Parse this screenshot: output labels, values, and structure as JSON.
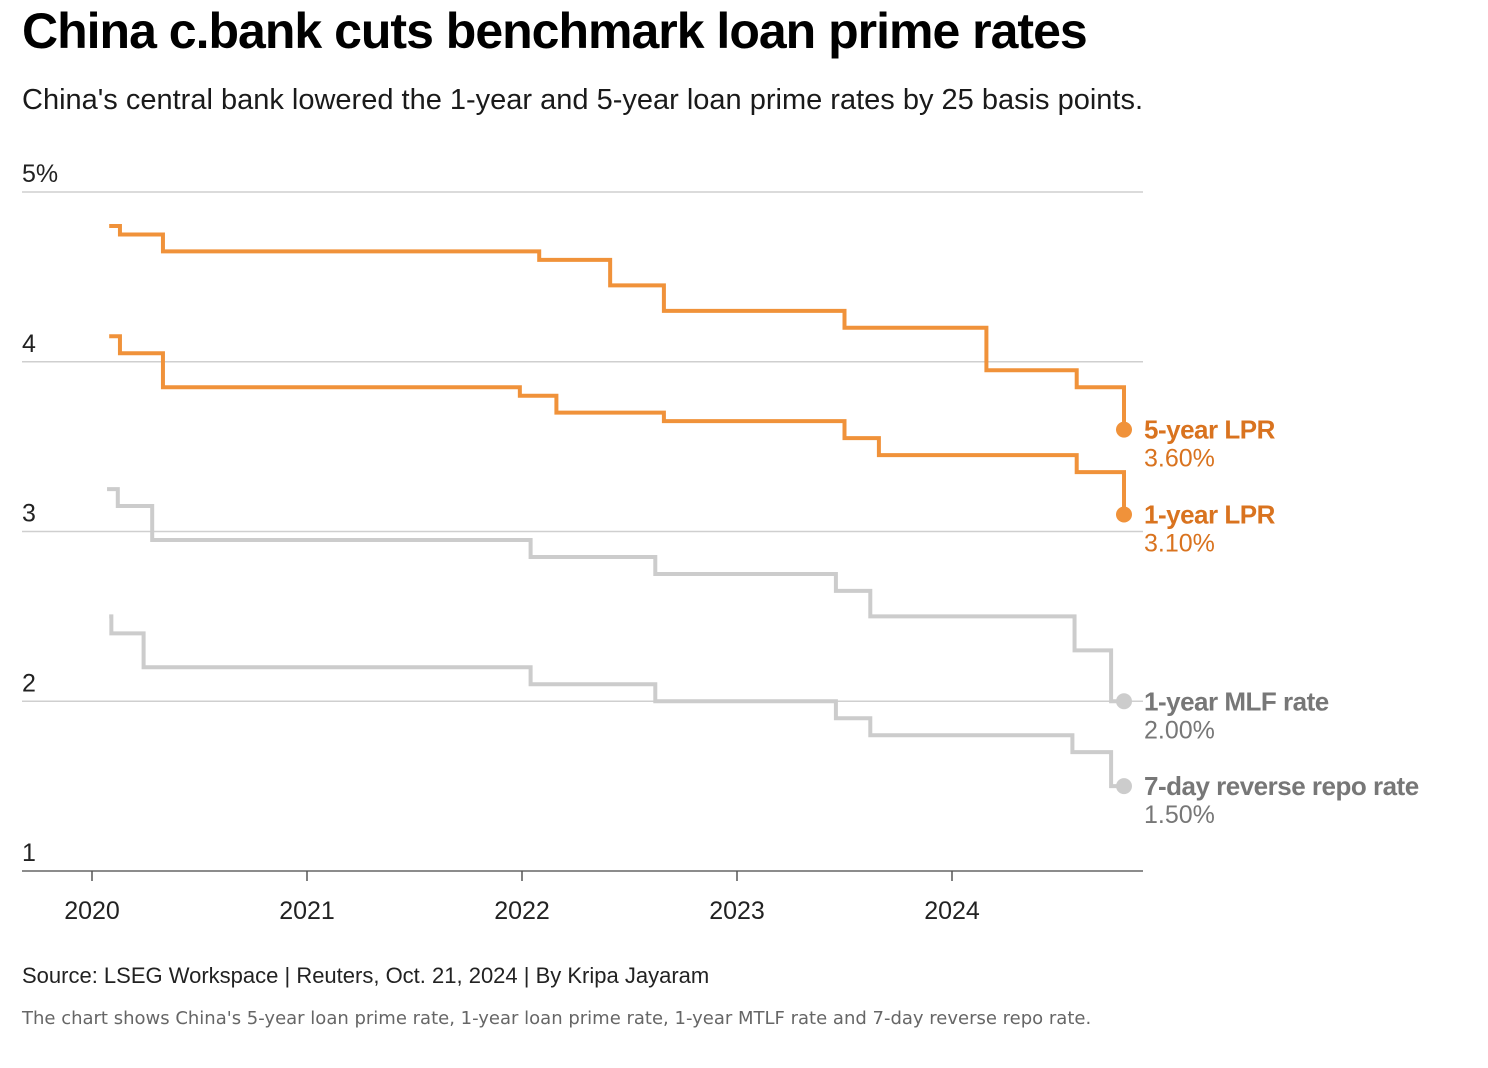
{
  "title": "China c.bank cuts benchmark loan prime rates",
  "subtitle": "China's central bank lowered the 1-year and 5-year loan prime rates by 25 basis points.",
  "source": "Source: LSEG Workspace | Reuters, Oct. 21, 2024 | By Kripa Jayaram",
  "note": "The chart shows China's 5-year loan prime rate, 1-year loan prime rate, 1-year MTLF rate and 7-day reverse repo rate.",
  "chart_data": {
    "type": "line",
    "step": true,
    "ylim": [
      1,
      5
    ],
    "y_ticks": [
      {
        "value": 5,
        "label": "5%"
      },
      {
        "value": 4,
        "label": "4"
      },
      {
        "value": 3,
        "label": "3"
      },
      {
        "value": 2,
        "label": "2"
      },
      {
        "value": 1,
        "label": "1"
      }
    ],
    "x_ticks": [
      2020,
      2021,
      2022,
      2023,
      2024
    ],
    "xlim": [
      2019.67,
      2024.93
    ],
    "grid": true,
    "series": [
      {
        "name": "5-year LPR",
        "end_label": "3.60%",
        "color": "#f0923a",
        "label_color": "#d9731f",
        "points": [
          [
            2020.08,
            4.8
          ],
          [
            2020.13,
            4.75
          ],
          [
            2020.33,
            4.65
          ],
          [
            2022.08,
            4.6
          ],
          [
            2022.41,
            4.45
          ],
          [
            2022.66,
            4.3
          ],
          [
            2023.5,
            4.2
          ],
          [
            2024.16,
            3.95
          ],
          [
            2024.58,
            3.85
          ],
          [
            2024.8,
            3.6
          ]
        ]
      },
      {
        "name": "1-year LPR",
        "end_label": "3.10%",
        "color": "#f0923a",
        "label_color": "#d9731f",
        "points": [
          [
            2020.08,
            4.15
          ],
          [
            2020.13,
            4.05
          ],
          [
            2020.33,
            3.85
          ],
          [
            2021.99,
            3.8
          ],
          [
            2022.16,
            3.7
          ],
          [
            2022.66,
            3.65
          ],
          [
            2023.5,
            3.55
          ],
          [
            2023.66,
            3.45
          ],
          [
            2024.58,
            3.35
          ],
          [
            2024.8,
            3.1
          ]
        ]
      },
      {
        "name": "1-year MLF rate",
        "end_label": "2.00%",
        "color": "#cccccc",
        "label_color": "#777777",
        "points": [
          [
            2020.07,
            3.25
          ],
          [
            2020.12,
            3.15
          ],
          [
            2020.28,
            2.95
          ],
          [
            2022.04,
            2.85
          ],
          [
            2022.62,
            2.75
          ],
          [
            2023.46,
            2.65
          ],
          [
            2023.62,
            2.5
          ],
          [
            2024.57,
            2.3
          ],
          [
            2024.74,
            2.0
          ],
          [
            2024.8,
            2.0
          ]
        ]
      },
      {
        "name": "7-day reverse repo rate",
        "end_label": "1.50%",
        "color": "#cccccc",
        "label_color": "#777777",
        "points": [
          [
            2020.08,
            2.5
          ],
          [
            2020.09,
            2.4
          ],
          [
            2020.24,
            2.2
          ],
          [
            2022.04,
            2.1
          ],
          [
            2022.62,
            2.0
          ],
          [
            2023.46,
            1.9
          ],
          [
            2023.62,
            1.8
          ],
          [
            2024.56,
            1.7
          ],
          [
            2024.74,
            1.5
          ],
          [
            2024.8,
            1.5
          ]
        ]
      }
    ]
  }
}
